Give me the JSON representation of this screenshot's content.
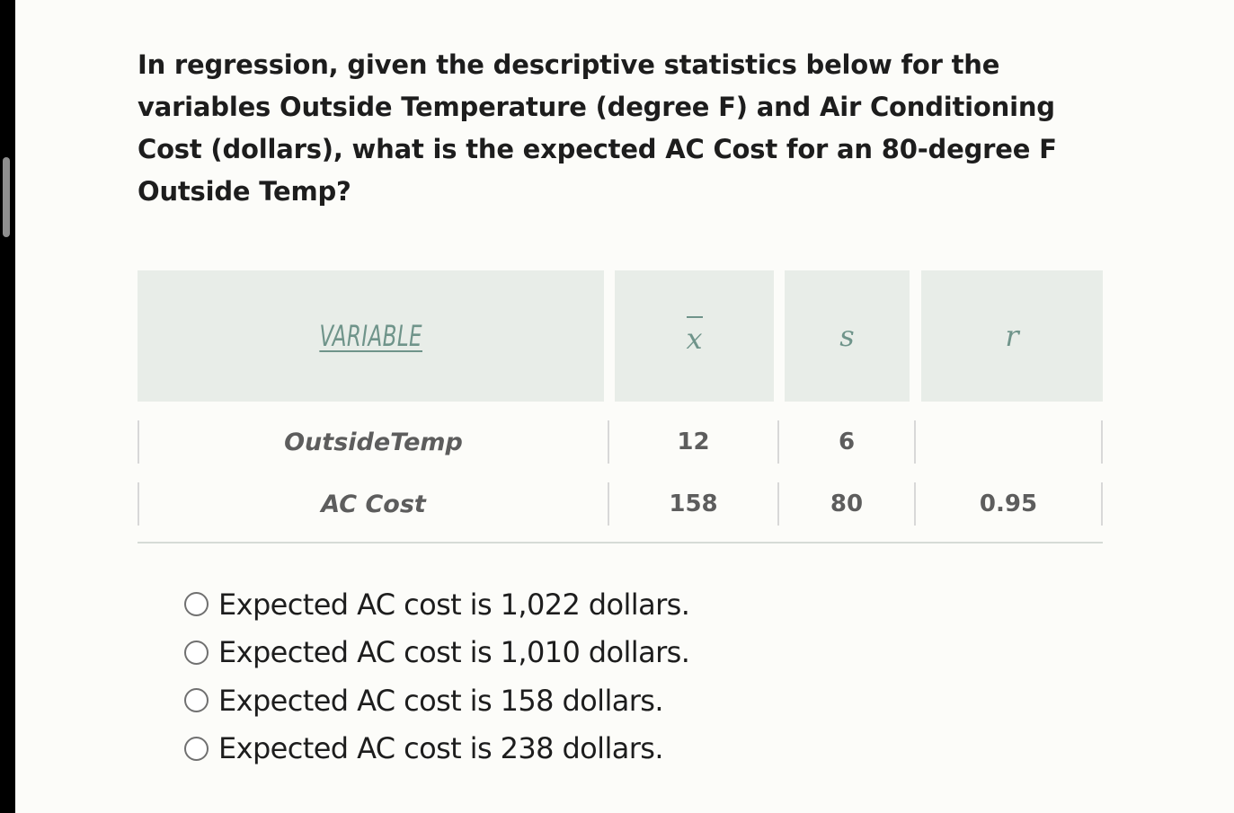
{
  "question": "In regression, given the descriptive statistics below for the variables Outside Temperature (degree F) and Air Conditioning Cost (dollars), what is the expected AC Cost for an 80-degree F Outside Temp?",
  "table": {
    "headers": {
      "variable": "VARIABLE",
      "mean": "x",
      "sd": "s",
      "r": "r"
    },
    "rows": [
      {
        "variable": "OutsideTemp",
        "mean": "12",
        "sd": "6",
        "r": ""
      },
      {
        "variable": "AC Cost",
        "mean": "158",
        "sd": "80",
        "r": "0.95"
      }
    ]
  },
  "options": [
    "Expected AC cost is 1,022 dollars.",
    "Expected AC cost is 1,010 dollars.",
    "Expected AC cost is 158 dollars.",
    "Expected AC cost is 238 dollars."
  ]
}
